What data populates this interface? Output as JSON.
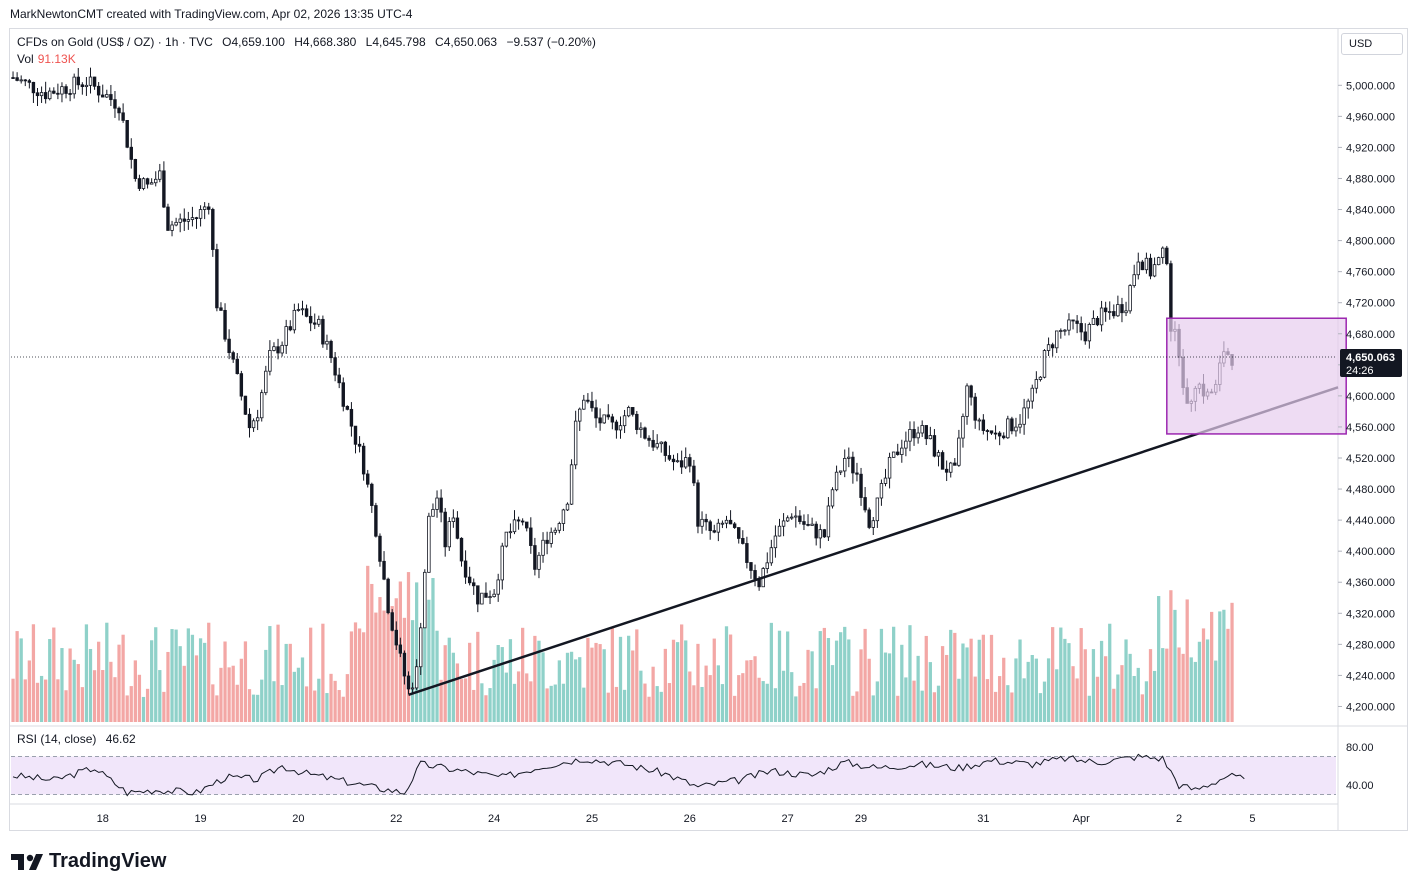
{
  "header": {
    "credit": "MarkNewtonCMT created with TradingView.com, Apr 02, 2026 13:35 UTC-4"
  },
  "legend": {
    "symbol": "CFDs on Gold (US$ / OZ) · 1h · TVC",
    "open": "O4,659.100",
    "high": "H4,668.380",
    "low": "L4,645.798",
    "close": "C4,650.063",
    "change": "−9.537 (−0.20%)",
    "vol_label": "Vol",
    "vol_value": "91.13K"
  },
  "rsi": {
    "label": "RSI (14, close)",
    "value": "46.62"
  },
  "currency_button": "USD",
  "price_label": {
    "value": "4,650.063",
    "countdown": "24:26"
  },
  "brand": "TradingView",
  "colors": {
    "up": "#26a69a",
    "down": "#ef5350",
    "vol_up": "#8fd1c9",
    "vol_down": "#f3a7a5",
    "box_fill": "#e7cdee",
    "box_border": "#9c27b0",
    "rsi_band": "#f1e6fa"
  },
  "chart_data": {
    "type": "candlestick",
    "title": "CFDs on Gold (US$ / OZ) · 1h · TVC",
    "ylim": [
      4180,
      5030
    ],
    "y_ticks": [
      4200,
      4240,
      4280,
      4320,
      4360,
      4400,
      4440,
      4480,
      4520,
      4560,
      4600,
      4640,
      4680,
      4720,
      4760,
      4800,
      4840,
      4880,
      4920,
      4960,
      5000
    ],
    "y_tick_labels": [
      "4,200.000",
      "4,240.000",
      "4,280.000",
      "4,320.000",
      "4,360.000",
      "4,400.000",
      "4,440.000",
      "4,480.000",
      "4,520.000",
      "4,560.000",
      "4,600.000",
      "4,640.000",
      "4,680.000",
      "4,720.000",
      "4,760.000",
      "4,800.000",
      "4,840.000",
      "4,880.000",
      "4,920.000",
      "4,960.000",
      "5,000.000"
    ],
    "x_ticks": [
      {
        "label": "18",
        "bar": 22
      },
      {
        "label": "19",
        "bar": 46
      },
      {
        "label": "20",
        "bar": 70
      },
      {
        "label": "22",
        "bar": 94
      },
      {
        "label": "24",
        "bar": 118
      },
      {
        "label": "25",
        "bar": 142
      },
      {
        "label": "26",
        "bar": 166
      },
      {
        "label": "27",
        "bar": 190
      },
      {
        "label": "29",
        "bar": 208
      },
      {
        "label": "31",
        "bar": 238
      },
      {
        "label": "Apr",
        "bar": 262
      },
      {
        "label": "2",
        "bar": 286
      },
      {
        "label": "5",
        "bar": 304
      }
    ],
    "bar_count": 325,
    "price_path": [
      [
        0,
        5010
      ],
      [
        8,
        4990
      ],
      [
        18,
        5005
      ],
      [
        22,
        4990
      ],
      [
        26,
        4975
      ],
      [
        30,
        4880
      ],
      [
        33,
        4870
      ],
      [
        36,
        4885
      ],
      [
        38,
        4820
      ],
      [
        45,
        4830
      ],
      [
        48,
        4850
      ],
      [
        50,
        4720
      ],
      [
        53,
        4660
      ],
      [
        56,
        4600
      ],
      [
        58,
        4560
      ],
      [
        60,
        4580
      ],
      [
        63,
        4650
      ],
      [
        66,
        4670
      ],
      [
        70,
        4710
      ],
      [
        72,
        4700
      ],
      [
        75,
        4690
      ],
      [
        78,
        4650
      ],
      [
        82,
        4580
      ],
      [
        86,
        4510
      ],
      [
        89,
        4430
      ],
      [
        92,
        4330
      ],
      [
        95,
        4260
      ],
      [
        97,
        4220
      ],
      [
        99,
        4245
      ],
      [
        102,
        4440
      ],
      [
        104,
        4470
      ],
      [
        106,
        4410
      ],
      [
        108,
        4450
      ],
      [
        110,
        4390
      ],
      [
        114,
        4340
      ],
      [
        118,
        4350
      ],
      [
        121,
        4420
      ],
      [
        125,
        4440
      ],
      [
        128,
        4380
      ],
      [
        131,
        4420
      ],
      [
        133,
        4430
      ],
      [
        136,
        4470
      ],
      [
        138,
        4560
      ],
      [
        140,
        4600
      ],
      [
        143,
        4570
      ],
      [
        147,
        4560
      ],
      [
        151,
        4580
      ],
      [
        155,
        4550
      ],
      [
        159,
        4530
      ],
      [
        163,
        4510
      ],
      [
        166,
        4520
      ],
      [
        168,
        4440
      ],
      [
        172,
        4420
      ],
      [
        175,
        4440
      ],
      [
        179,
        4400
      ],
      [
        183,
        4360
      ],
      [
        187,
        4420
      ],
      [
        191,
        4450
      ],
      [
        195,
        4430
      ],
      [
        199,
        4420
      ],
      [
        201,
        4480
      ],
      [
        204,
        4520
      ],
      [
        207,
        4500
      ],
      [
        210,
        4440
      ],
      [
        212,
        4460
      ],
      [
        215,
        4510
      ],
      [
        218,
        4540
      ],
      [
        222,
        4560
      ],
      [
        225,
        4540
      ],
      [
        228,
        4510
      ],
      [
        231,
        4500
      ],
      [
        234,
        4610
      ],
      [
        237,
        4560
      ],
      [
        241,
        4550
      ],
      [
        244,
        4560
      ],
      [
        247,
        4570
      ],
      [
        250,
        4600
      ],
      [
        253,
        4650
      ],
      [
        256,
        4680
      ],
      [
        260,
        4690
      ],
      [
        263,
        4680
      ],
      [
        266,
        4700
      ],
      [
        270,
        4710
      ],
      [
        273,
        4720
      ],
      [
        276,
        4780
      ],
      [
        279,
        4760
      ],
      [
        282,
        4780
      ],
      [
        283,
        4780
      ],
      [
        284,
        4690
      ],
      [
        286,
        4660
      ],
      [
        288,
        4580
      ],
      [
        290,
        4620
      ],
      [
        293,
        4600
      ],
      [
        295,
        4610
      ],
      [
        297,
        4660
      ],
      [
        299,
        4650
      ]
    ],
    "volume": {
      "note": "Volume bars (thousands), pattern approximated",
      "last_value": "91.13K"
    },
    "annotations": [
      {
        "type": "trendline",
        "from": {
          "bar": 97,
          "price": 4215
        },
        "to": {
          "bar": 325,
          "price": 4611
        }
      },
      {
        "type": "rectangle",
        "from": {
          "bar": 283,
          "price": 4700
        },
        "to": {
          "bar": 327,
          "price": 4551
        }
      },
      {
        "type": "price_line",
        "price": 4650.063
      }
    ],
    "rsi_series": {
      "label": "RSI (14, close)",
      "last": 46.62,
      "ylim": [
        20,
        100
      ],
      "y_ticks": [
        80,
        40
      ],
      "y_tick_labels": [
        "80.00",
        "40.00"
      ],
      "band": [
        30,
        70
      ],
      "path": [
        [
          0,
          50
        ],
        [
          10,
          45
        ],
        [
          20,
          58
        ],
        [
          28,
          32
        ],
        [
          35,
          35
        ],
        [
          45,
          32
        ],
        [
          52,
          48
        ],
        [
          60,
          46
        ],
        [
          66,
          60
        ],
        [
          72,
          52
        ],
        [
          80,
          45
        ],
        [
          88,
          38
        ],
        [
          96,
          32
        ],
        [
          100,
          62
        ],
        [
          110,
          55
        ],
        [
          120,
          48
        ],
        [
          130,
          60
        ],
        [
          140,
          68
        ],
        [
          150,
          62
        ],
        [
          160,
          52
        ],
        [
          168,
          38
        ],
        [
          178,
          45
        ],
        [
          186,
          55
        ],
        [
          196,
          50
        ],
        [
          204,
          64
        ],
        [
          212,
          58
        ],
        [
          222,
          62
        ],
        [
          232,
          58
        ],
        [
          240,
          66
        ],
        [
          250,
          62
        ],
        [
          258,
          68
        ],
        [
          266,
          64
        ],
        [
          276,
          70
        ],
        [
          282,
          68
        ],
        [
          286,
          40
        ],
        [
          290,
          35
        ],
        [
          294,
          42
        ],
        [
          298,
          50
        ],
        [
          302,
          46.62
        ]
      ]
    }
  }
}
